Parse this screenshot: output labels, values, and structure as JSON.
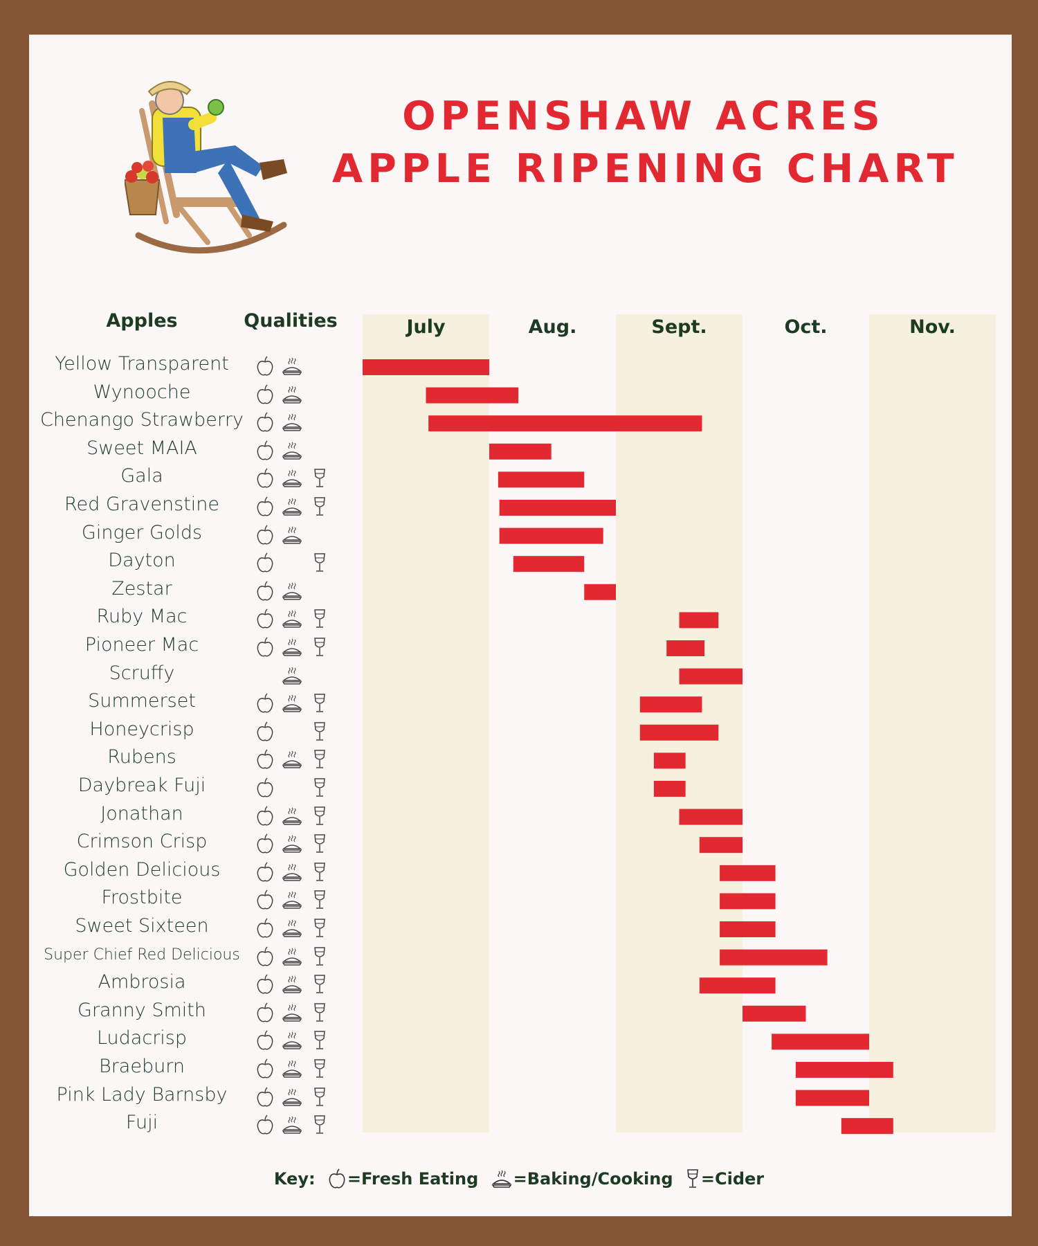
{
  "title": {
    "line1": "OPENSHAW ACRES",
    "line2": "APPLE RIPENING CHART"
  },
  "headers": {
    "apples": "Apples",
    "qualities": "Qualities"
  },
  "key": {
    "label": "Key:",
    "fresh": "=Fresh Eating",
    "baking": "=Baking/Cooking",
    "cider": "=Cider"
  },
  "colors": {
    "bar": "#e22831",
    "band": "#f6f0df",
    "text": "#1e3d2a",
    "frame": "#845434"
  },
  "chart_data": {
    "type": "gantt",
    "title": "OPENSHAW ACRES APPLE RIPENING CHART",
    "months": [
      "July",
      "Aug.",
      "Sept.",
      "Oct.",
      "Nov."
    ],
    "shaded_months": [
      "July",
      "Sept.",
      "Nov."
    ],
    "unit": "months from start of July",
    "rows": [
      {
        "name": "Yellow Transparent",
        "qualities": [
          "fresh",
          "baking"
        ],
        "start": 0.0,
        "end": 1.0
      },
      {
        "name": "Wynooche",
        "qualities": [
          "fresh",
          "baking"
        ],
        "start": 0.5,
        "end": 1.23
      },
      {
        "name": "Chenango Strawberry",
        "qualities": [
          "fresh",
          "baking"
        ],
        "start": 0.52,
        "end": 2.68
      },
      {
        "name": "Sweet MAIA",
        "qualities": [
          "fresh",
          "baking"
        ],
        "start": 1.0,
        "end": 1.49
      },
      {
        "name": "Gala",
        "qualities": [
          "fresh",
          "baking",
          "cider"
        ],
        "start": 1.07,
        "end": 1.75
      },
      {
        "name": "Red Gravenstine",
        "qualities": [
          "fresh",
          "baking",
          "cider"
        ],
        "start": 1.08,
        "end": 2.0
      },
      {
        "name": "Ginger Golds",
        "qualities": [
          "fresh",
          "baking"
        ],
        "start": 1.08,
        "end": 1.9
      },
      {
        "name": "Dayton",
        "qualities": [
          "fresh",
          "cider"
        ],
        "start": 1.19,
        "end": 1.75
      },
      {
        "name": "Zestar",
        "qualities": [
          "fresh",
          "baking"
        ],
        "start": 1.75,
        "end": 2.0
      },
      {
        "name": "Ruby Mac",
        "qualities": [
          "fresh",
          "baking",
          "cider"
        ],
        "start": 2.5,
        "end": 2.81
      },
      {
        "name": "Pioneer Mac",
        "qualities": [
          "fresh",
          "baking",
          "cider"
        ],
        "start": 2.4,
        "end": 2.7
      },
      {
        "name": "Scruffy",
        "qualities": [
          "baking"
        ],
        "start": 2.5,
        "end": 3.0
      },
      {
        "name": "Summerset",
        "qualities": [
          "fresh",
          "baking",
          "cider"
        ],
        "start": 2.19,
        "end": 2.68
      },
      {
        "name": "Honeycrisp",
        "qualities": [
          "fresh",
          "cider"
        ],
        "start": 2.19,
        "end": 2.81
      },
      {
        "name": "Rubens",
        "qualities": [
          "fresh",
          "baking",
          "cider"
        ],
        "start": 2.3,
        "end": 2.55
      },
      {
        "name": "Daybreak Fuji",
        "qualities": [
          "fresh",
          "cider"
        ],
        "start": 2.3,
        "end": 2.55
      },
      {
        "name": "Jonathan",
        "qualities": [
          "fresh",
          "baking",
          "cider"
        ],
        "start": 2.5,
        "end": 3.0
      },
      {
        "name": "Crimson Crisp",
        "qualities": [
          "fresh",
          "baking",
          "cider"
        ],
        "start": 2.66,
        "end": 3.0
      },
      {
        "name": "Golden Delicious",
        "qualities": [
          "fresh",
          "baking",
          "cider"
        ],
        "start": 2.82,
        "end": 3.26
      },
      {
        "name": "Frostbite",
        "qualities": [
          "fresh",
          "baking",
          "cider"
        ],
        "start": 2.82,
        "end": 3.26
      },
      {
        "name": "Sweet Sixteen",
        "qualities": [
          "fresh",
          "baking",
          "cider"
        ],
        "start": 2.82,
        "end": 3.26
      },
      {
        "name": "Super Chief Red Delicious",
        "qualities": [
          "fresh",
          "baking",
          "cider"
        ],
        "start": 2.82,
        "end": 3.67
      },
      {
        "name": "Ambrosia",
        "qualities": [
          "fresh",
          "baking",
          "cider"
        ],
        "start": 2.66,
        "end": 3.26
      },
      {
        "name": "Granny Smith",
        "qualities": [
          "fresh",
          "baking",
          "cider"
        ],
        "start": 3.0,
        "end": 3.5
      },
      {
        "name": "Ludacrisp",
        "qualities": [
          "fresh",
          "baking",
          "cider"
        ],
        "start": 3.23,
        "end": 4.0
      },
      {
        "name": "Braeburn",
        "qualities": [
          "fresh",
          "baking",
          "cider"
        ],
        "start": 3.42,
        "end": 4.19
      },
      {
        "name": "Pink Lady Barnsby",
        "qualities": [
          "fresh",
          "baking",
          "cider"
        ],
        "start": 3.42,
        "end": 4.0
      },
      {
        "name": "Fuji",
        "qualities": [
          "fresh",
          "baking",
          "cider"
        ],
        "start": 3.78,
        "end": 4.19
      }
    ]
  }
}
